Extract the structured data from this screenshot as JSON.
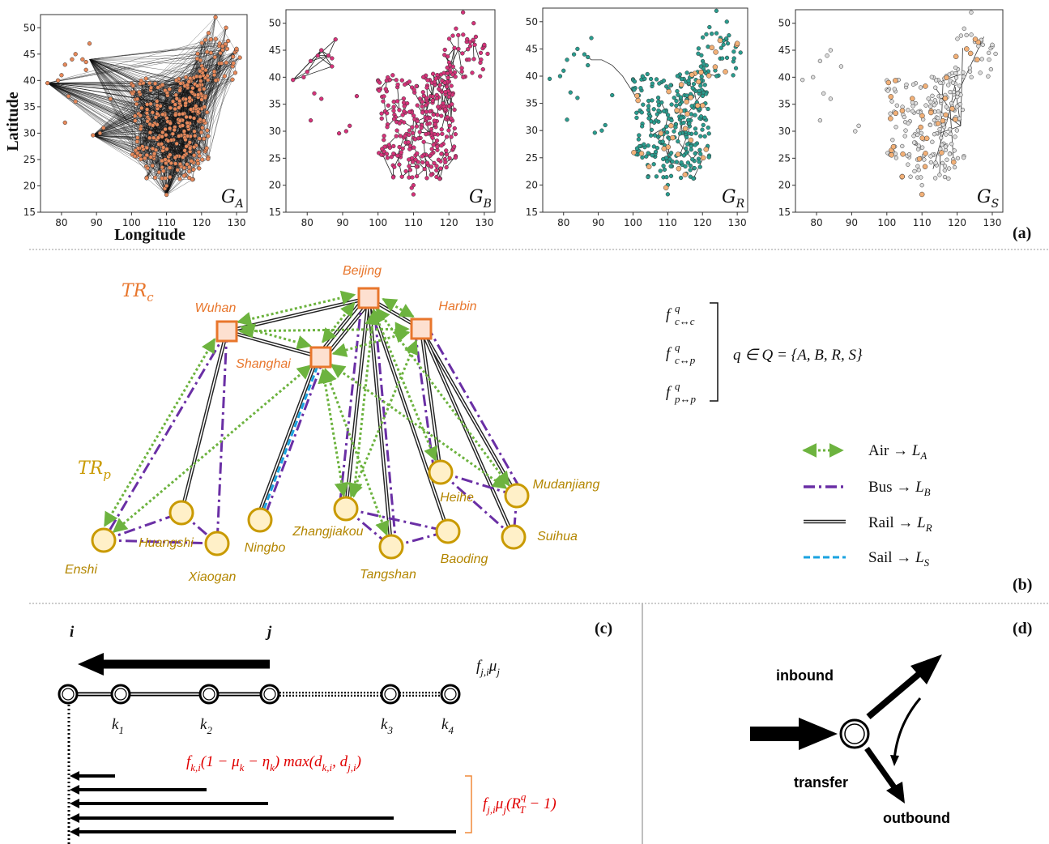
{
  "panel_labels": {
    "a": "(a)",
    "b": "(b)",
    "c": "(c)",
    "d": "(d)"
  },
  "panel_a": {
    "ylabel": "Latitude",
    "xlabel": "Longitude",
    "x_ticks": [
      "80",
      "90",
      "100",
      "110",
      "120",
      "130"
    ],
    "y_ticks": [
      "50",
      "45",
      "40",
      "35",
      "30",
      "25",
      "20",
      "15"
    ],
    "graph_labels": [
      "G",
      "G",
      "G",
      "G"
    ],
    "graph_subscripts": [
      "A",
      "B",
      "R",
      "S"
    ],
    "colors": {
      "air_nodes": "#e8895a",
      "bus_nodes": "#d6337a",
      "rail_nodes": "#2a9d8f",
      "sail_nodes": "#dddddd",
      "hub_nodes": "#f2b077"
    }
  },
  "panel_b": {
    "tr_c": "TR",
    "tr_c_sub": "c",
    "tr_p": "TR",
    "tr_p_sub": "p",
    "core_cities": [
      "Beijing",
      "Wuhan",
      "Harbin",
      "Shanghai"
    ],
    "peripheral_cities": [
      "Enshi",
      "Huangshi",
      "Xiaogan",
      "Ningbo",
      "Zhangjiakou",
      "Tangshan",
      "Baoding",
      "Heihe",
      "Mudanjiang",
      "Suihua"
    ],
    "flows": [
      "c↔c",
      "c↔p",
      "p↔p"
    ],
    "q_set": "q ∈ Q = {A, B, R, S}",
    "legend": [
      {
        "label": "Air → ",
        "layer": "L",
        "sub": "A"
      },
      {
        "label": "Bus → ",
        "layer": "L",
        "sub": "B"
      },
      {
        "label": "Rail → ",
        "layer": "L",
        "sub": "R"
      },
      {
        "label": "Sail → ",
        "layer": "L",
        "sub": "S"
      }
    ],
    "colors": {
      "air": "#6db33f",
      "bus": "#6a2fa5",
      "rail": "#222222",
      "sail": "#1aa3e0",
      "core": "#e8762c",
      "peripheral": "#c99a00"
    }
  },
  "panel_c": {
    "node_i": "i",
    "node_j": "j",
    "k_labels": [
      "k",
      "k",
      "k",
      "k"
    ],
    "k_subs": [
      "1",
      "2",
      "3",
      "4"
    ],
    "flow_top": "f",
    "flow_top_sub": "j,i",
    "flow_top_mu": "μ",
    "flow_top_mu_sub": "j",
    "formula_red_1": "f",
    "formula_red_1_tail": "(1 − μ",
    "formula_red_1_tail2": " − η",
    "formula_red_1_tail3": ") max(d",
    "formula_red_1_tail4": ", d",
    "formula_red_1_tail5": ")",
    "formula_red_2": "f",
    "formula_red_2_mid": "μ",
    "formula_red_2_tail": "(R",
    "formula_red_2_tail2": " − 1)"
  },
  "panel_d": {
    "inbound": "inbound",
    "transfer": "transfer",
    "outbound": "outbound"
  }
}
